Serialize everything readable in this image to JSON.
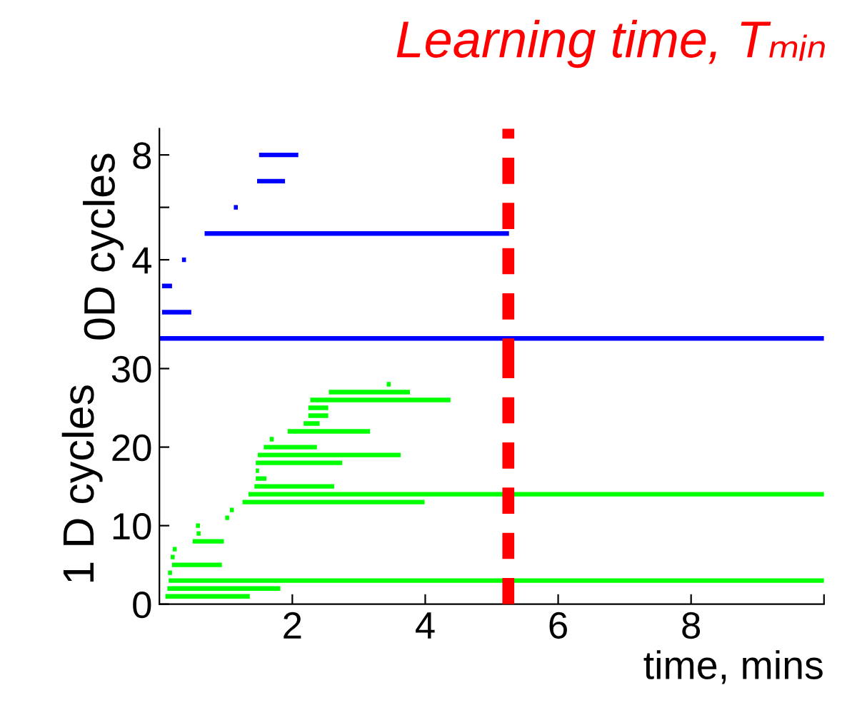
{
  "chart_data": [
    {
      "type": "bar",
      "orientation": "horizontal",
      "title": "Learning time, Tₘᵢₙ",
      "ylabel": "0D cycles",
      "color": "#0000ff",
      "xlim": [
        0,
        10
      ],
      "ylim": [
        0,
        9
      ],
      "yticks": [
        4,
        {
          "value": 6,
          "label": null
        },
        8
      ],
      "tick_labels": "y",
      "ref_lines": [
        {
          "axis": "x",
          "value": 5.25,
          "label": null,
          "color": "#ff0000",
          "line_style": "dashed"
        }
      ],
      "x": [
        1,
        2,
        3,
        4,
        5,
        6,
        7,
        8
      ],
      "base": [
        0,
        0.04,
        0.04,
        0.34,
        0.68,
        1.12,
        1.47,
        1.5
      ],
      "values": [
        10,
        0.44,
        0.15,
        0.06,
        4.58,
        0.06,
        0.42,
        0.59
      ]
    },
    {
      "type": "bar",
      "orientation": "horizontal",
      "ylabel": "1 D cycles",
      "xlabel": "time, mins",
      "color": "#00ff00",
      "xlim": [
        0,
        10
      ],
      "xticks": [
        2,
        4,
        6,
        8,
        {
          "value": 10,
          "label": null
        }
      ],
      "ylim": [
        0,
        30.5
      ],
      "yticks": [
        0,
        10,
        20,
        30
      ],
      "ref_lines": [
        {
          "axis": "x",
          "value": 5.25,
          "label": null,
          "color": "#ff0000",
          "line_style": "dashed"
        }
      ],
      "x": [
        1,
        2,
        3,
        4,
        5,
        6,
        7,
        8,
        9,
        10,
        11,
        12,
        13,
        14,
        15,
        16,
        17,
        18,
        19,
        20,
        21,
        22,
        23,
        24,
        25,
        26,
        27,
        28
      ],
      "base": [
        0.09,
        0.12,
        0.14,
        0.13,
        0.19,
        0.17,
        0.2,
        0.5,
        0.56,
        0.55,
        0.99,
        1.06,
        1.25,
        1.34,
        1.43,
        1.45,
        1.45,
        1.45,
        1.48,
        1.57,
        1.66,
        1.93,
        2.17,
        2.24,
        2.24,
        2.27,
        2.55,
        3.42
      ],
      "values": [
        1.27,
        1.7,
        9.86,
        0.06,
        0.75,
        0.06,
        0.06,
        0.47,
        0.06,
        0.06,
        0.06,
        0.06,
        2.74,
        8.66,
        1.2,
        0.16,
        0.05,
        1.3,
        2.15,
        0.8,
        0.06,
        1.24,
        0.24,
        0.3,
        0.3,
        2.11,
        1.22,
        0.06
      ]
    }
  ]
}
